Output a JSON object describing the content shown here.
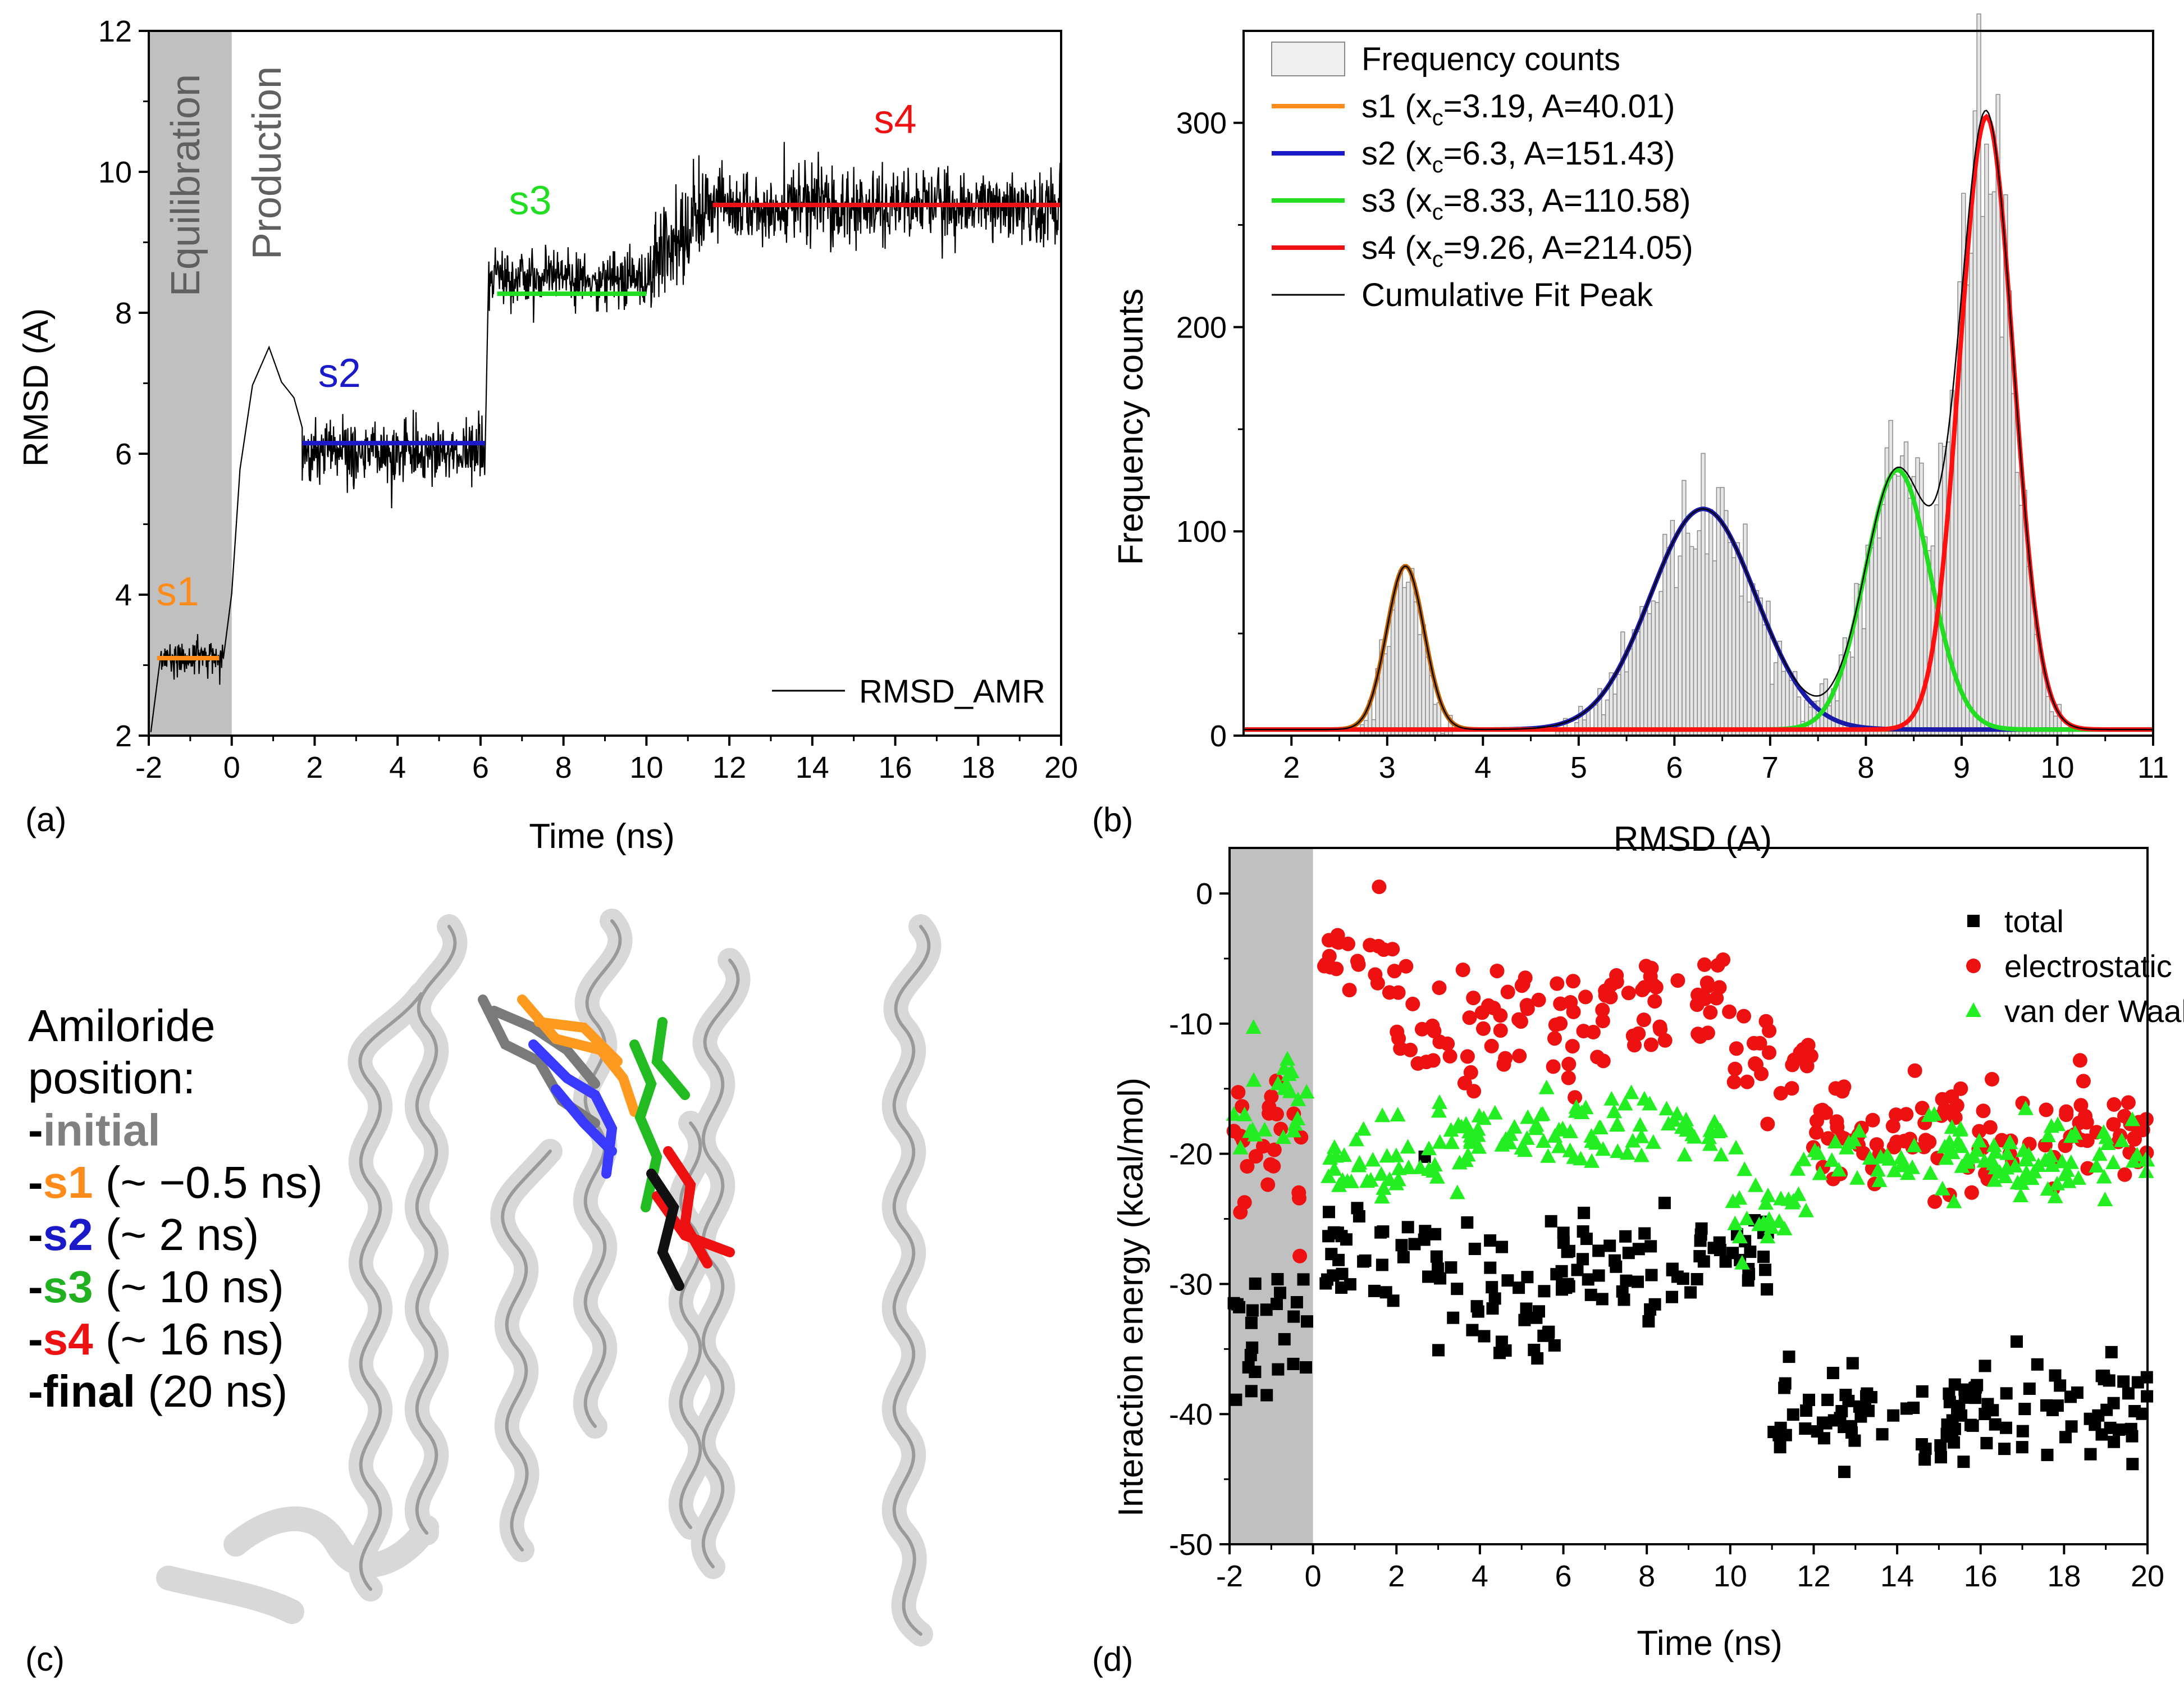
{
  "colors": {
    "s1": "#ff8c1a",
    "s2": "#1a1ac8",
    "s3": "#22dd22",
    "s4": "#ee1111",
    "s1_fit": "#c06000",
    "s2_fit": "#1a1aa8",
    "s4_fit": "#ff1010",
    "gray_band": "#c0c0c0",
    "initial": "#808080",
    "s3_text": "#20b020"
  },
  "chart_data": [
    {
      "panel": "(a)",
      "type": "line",
      "xlabel": "Time (ns)",
      "ylabel": "RMSD (A)",
      "xlim": [
        -2,
        20
      ],
      "ylim": [
        2,
        12
      ],
      "xticks": [
        "-2",
        "0",
        "2",
        "4",
        "6",
        "8",
        "10",
        "12",
        "14",
        "16",
        "18",
        "20"
      ],
      "yticks": [
        "2",
        "4",
        "6",
        "8",
        "10",
        "12"
      ],
      "band_label_equil": "Equilibration",
      "band_label_prod": "Production",
      "equilibration_range": [
        -2,
        0
      ],
      "legend": "RMSD_AMR",
      "trace_segments": [
        {
          "t0": -1.7,
          "t1": -0.2,
          "mean": 3.1,
          "noise": 0.25
        },
        {
          "t0": 1.7,
          "t1": 6.1,
          "mean": 6.0,
          "noise": 0.5
        },
        {
          "t0": 6.2,
          "t1": 10.2,
          "mean": 8.5,
          "noise": 0.45
        },
        {
          "t0": 10.2,
          "t1": 11.5,
          "mean": 9.0,
          "noise": 0.8
        },
        {
          "t0": 11.5,
          "t1": 20,
          "mean": 9.5,
          "noise": 0.55
        }
      ],
      "state_lines": [
        {
          "name": "s1",
          "label": "s1",
          "x0": -1.8,
          "x1": -0.3,
          "y": 3.1
        },
        {
          "name": "s2",
          "label": "s2",
          "x0": 1.7,
          "x1": 6.1,
          "y": 6.15
        },
        {
          "name": "s3",
          "label": "s3",
          "x0": 6.4,
          "x1": 10.0,
          "y": 8.27
        },
        {
          "name": "s4",
          "label": "s4",
          "x0": 11.6,
          "x1": 20,
          "y": 9.53
        }
      ]
    },
    {
      "panel": "(b)",
      "type": "histogram",
      "xlabel": "RMSD (A)",
      "ylabel": "Frequency counts",
      "xlim": [
        1.5,
        11
      ],
      "ylim": [
        0,
        345
      ],
      "xticks": [
        "2",
        "3",
        "4",
        "5",
        "6",
        "7",
        "8",
        "9",
        "10",
        "11"
      ],
      "yticks": [
        "0",
        "100",
        "200",
        "300"
      ],
      "legend": [
        {
          "key": "hist",
          "label": "Frequency counts"
        },
        {
          "key": "s1",
          "label": "s1 (x",
          "sub": "c",
          "rest": "=3.19, A=40.01)"
        },
        {
          "key": "s2",
          "label": "s2 (x",
          "sub": "c",
          "rest": "=6.3, A=151.43)"
        },
        {
          "key": "s3",
          "label": "s3 (x",
          "sub": "c",
          "rest": "=8.33, A=110.58)"
        },
        {
          "key": "s4",
          "label": "s4 (x",
          "sub": "c",
          "rest": "=9.26, A=214.05)"
        },
        {
          "key": "cum",
          "label": "Cumulative Fit Peak"
        }
      ],
      "gaussians": [
        {
          "name": "s1",
          "xc": 3.19,
          "A": 40.01,
          "w": 0.39,
          "peak": 80
        },
        {
          "name": "s2",
          "xc": 6.3,
          "A": 151.43,
          "w": 1.1,
          "peak": 108
        },
        {
          "name": "s3",
          "xc": 8.33,
          "A": 110.58,
          "w": 0.68,
          "peak": 127
        },
        {
          "name": "s4",
          "xc": 9.26,
          "A": 214.05,
          "w": 0.56,
          "peak": 300
        }
      ],
      "baseline": 3
    },
    {
      "panel": "(d)",
      "type": "scatter",
      "xlabel": "Time (ns)",
      "ylabel": "Interaction energy (kcal/mol)",
      "xlim": [
        -2,
        20
      ],
      "ylim": [
        -50,
        3.5
      ],
      "xticks": [
        "-2",
        "0",
        "2",
        "4",
        "6",
        "8",
        "10",
        "12",
        "14",
        "16",
        "18",
        "20"
      ],
      "yticks": [
        "0",
        "-10",
        "-20",
        "-30",
        "-40",
        "-50"
      ],
      "equilibration_range": [
        -2,
        0
      ],
      "series": [
        {
          "name": "total",
          "marker": "square",
          "color": "#000000",
          "segments": [
            [
              -1.9,
              0,
              -34,
              4.5
            ],
            [
              0.2,
              3,
              -28,
              2.8
            ],
            [
              3,
              6,
              -32,
              3.5
            ],
            [
              6,
              9,
              -28.5,
              2.5
            ],
            [
              9,
              11,
              -28,
              2.5
            ],
            [
              11,
              20,
              -40,
              2.5
            ]
          ]
        },
        {
          "name": "electrostatic",
          "marker": "circle",
          "color": "#ee1111",
          "segments": [
            [
              -1.9,
              0,
              -18,
              5
            ],
            [
              0.2,
              2,
              -5.5,
              2.5
            ],
            [
              2,
              5,
              -11,
              3
            ],
            [
              5,
              7,
              -10,
              3
            ],
            [
              7,
              10,
              -8,
              2
            ],
            [
              10,
              12,
              -13,
              3
            ],
            [
              12,
              20,
              -18.5,
              2.5
            ]
          ]
        },
        {
          "name": "van der Waals",
          "marker": "triangle",
          "color": "#22ee22",
          "segments": [
            [
              -1.9,
              0,
              -16,
              2.5
            ],
            [
              0.2,
              3,
              -21,
              2
            ],
            [
              3,
              10,
              -18.5,
              1.8
            ],
            [
              10,
              12,
              -24,
              2.5
            ],
            [
              12,
              20,
              -20.5,
              1.8
            ]
          ]
        }
      ]
    }
  ],
  "panels": {
    "a": "(a)",
    "b": "(b)",
    "c": "(c)",
    "d": "(d)"
  },
  "structure_legend": {
    "heading1": "Amiloride",
    "heading2": "position:",
    "items": [
      {
        "dash": "-",
        "name": "initial",
        "note": ""
      },
      {
        "dash": "-",
        "name": "s1",
        "note": " (~ −0.5 ns)"
      },
      {
        "dash": "-",
        "name": "s2",
        "note": " (~ 2 ns)"
      },
      {
        "dash": "-",
        "name": "s3",
        "note": " (~ 10 ns)"
      },
      {
        "dash": "-",
        "name": "s4",
        "note": " (~ 16 ns)"
      },
      {
        "dash": "-",
        "name": "final",
        "note": " (20 ns)"
      }
    ]
  }
}
